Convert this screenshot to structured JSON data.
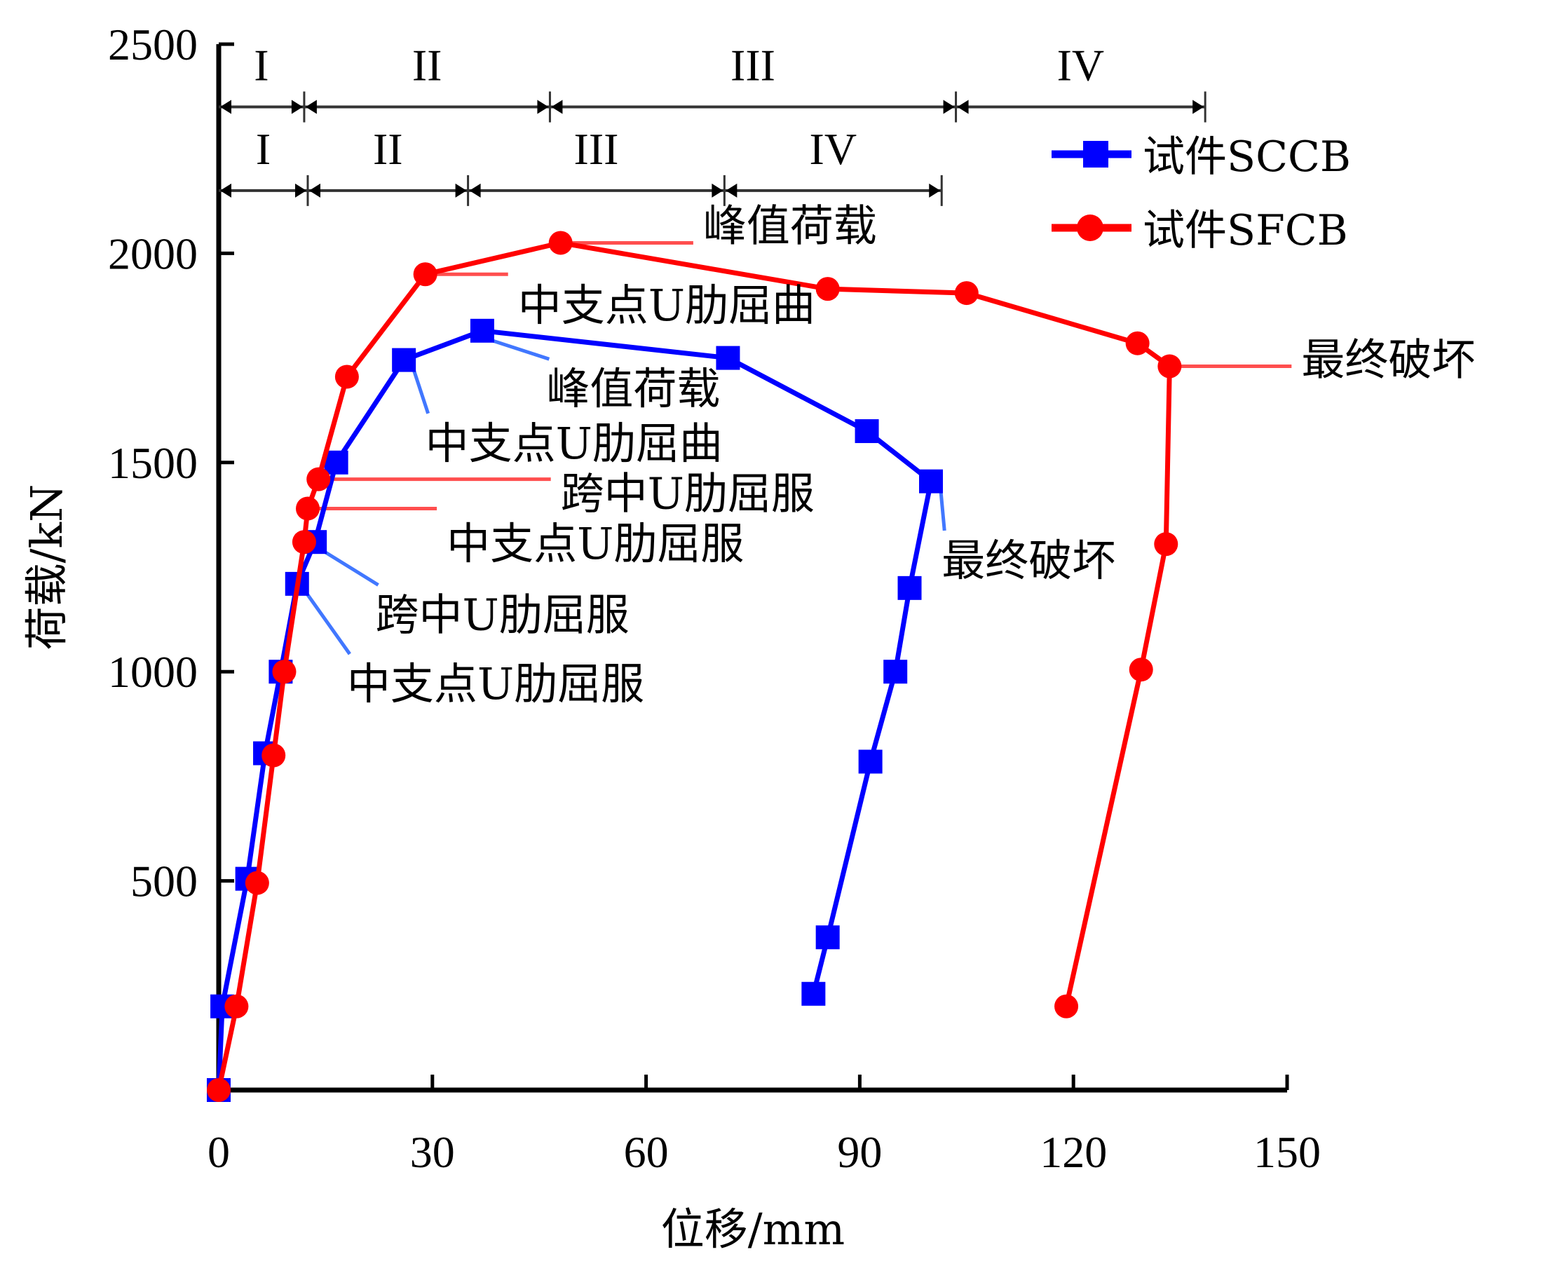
{
  "chart_data": {
    "type": "line",
    "title": "",
    "xlabel": "位移/mm",
    "ylabel": "荷载/kN",
    "xlim": [
      0,
      150
    ],
    "ylim": [
      0,
      2500
    ],
    "xticks": [
      0,
      30,
      60,
      90,
      120,
      150
    ],
    "yticks": [
      500,
      1000,
      1500,
      2000,
      2500
    ],
    "grid": false,
    "legend_position": "top-right",
    "series": [
      {
        "name": "试件SCCB",
        "color": "#0000ff",
        "marker": "square",
        "x": [
          0,
          0.5,
          4.0,
          6.5,
          8.7,
          11.0,
          13.5,
          16.5,
          26.0,
          37.0,
          71.5,
          91.0,
          100.0,
          97.0,
          95.0,
          91.5,
          85.5,
          83.5
        ],
        "y": [
          0,
          200,
          505,
          805,
          1000,
          1210,
          1310,
          1500,
          1745,
          1815,
          1750,
          1575,
          1455,
          1200,
          1000,
          785,
          365,
          230
        ]
      },
      {
        "name": "试件SFCB",
        "color": "#ff0000",
        "marker": "circle",
        "x": [
          0,
          2.5,
          5.4,
          7.7,
          9.2,
          12.0,
          12.5,
          14.0,
          18.0,
          29.0,
          48.0,
          85.5,
          105.0,
          129.0,
          133.5,
          133.0,
          129.5,
          119.0
        ],
        "y": [
          0,
          200,
          495,
          800,
          1000,
          1310,
          1390,
          1460,
          1705,
          1950,
          2025,
          1915,
          1905,
          1785,
          1730,
          1305,
          1005,
          200
        ]
      }
    ],
    "stage_rows": [
      {
        "series": "试件SFCB",
        "load_level": 2350,
        "boundaries": [
          0,
          12,
          46.5,
          103.5,
          138.5
        ],
        "labels": [
          "I",
          "II",
          "III",
          "IV"
        ]
      },
      {
        "series": "试件SCCB",
        "load_level": 2150,
        "boundaries": [
          0,
          12.5,
          35,
          71,
          101.5
        ],
        "labels": [
          "I",
          "II",
          "III",
          "IV"
        ]
      }
    ],
    "annotations": [
      {
        "series": "试件SFCB",
        "text": "峰值荷载",
        "point": [
          48.0,
          2025
        ],
        "text_at": [
          68,
          2030
        ]
      },
      {
        "series": "试件SFCB",
        "text": "中支点U肋屈曲",
        "point": [
          29.0,
          1950
        ],
        "text_at": [
          42,
          1840
        ]
      },
      {
        "series": "试件SFCB",
        "text": "最终破坏",
        "point": [
          133.5,
          1730
        ],
        "text_at": [
          152,
          1710
        ]
      },
      {
        "series": "试件SFCB",
        "text": "跨中U肋屈服",
        "point": [
          14.0,
          1460
        ],
        "text_at": [
          48,
          1390
        ]
      },
      {
        "series": "试件SFCB",
        "text": "中支点U肋屈服",
        "point": [
          12.5,
          1390
        ],
        "text_at": [
          32,
          1270
        ]
      },
      {
        "series": "试件SCCB",
        "text": "峰值荷载",
        "point": [
          37.0,
          1815
        ],
        "text_at": [
          46,
          1640
        ]
      },
      {
        "series": "试件SCCB",
        "text": "中支点U肋屈曲",
        "point": [
          26.0,
          1745
        ],
        "text_at": [
          29,
          1510
        ]
      },
      {
        "series": "试件SCCB",
        "text": "最终破坏",
        "point": [
          100.0,
          1455
        ],
        "text_at": [
          101.5,
          1230
        ]
      },
      {
        "series": "试件SCCB",
        "text": "跨中U肋屈服",
        "point": [
          13.5,
          1310
        ],
        "text_at": [
          22,
          1100
        ]
      },
      {
        "series": "试件SCCB",
        "text": "中支点U肋屈服",
        "point": [
          11.0,
          1210
        ],
        "text_at": [
          18,
          935
        ]
      }
    ]
  }
}
